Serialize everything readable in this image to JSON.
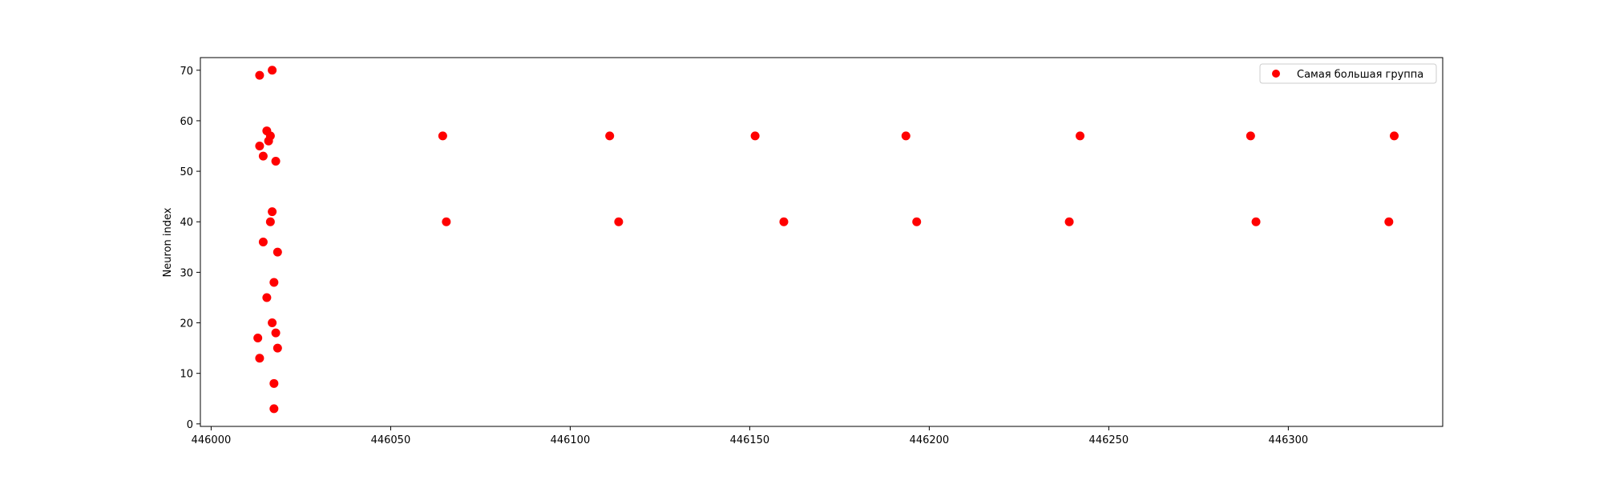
{
  "chart_data": {
    "type": "scatter",
    "title": "",
    "xlabel": "",
    "ylabel": "Neuron index",
    "xlim": [
      445997,
      446343
    ],
    "ylim": [
      -0.5,
      72.5
    ],
    "xticks": [
      446000,
      446050,
      446100,
      446150,
      446200,
      446250,
      446300
    ],
    "xtick_labels": [
      "446000",
      "446050",
      "446100",
      "446150",
      "446200",
      "446250",
      "446300"
    ],
    "yticks": [
      0,
      10,
      20,
      30,
      40,
      50,
      60,
      70
    ],
    "ytick_labels": [
      "0",
      "10",
      "20",
      "30",
      "40",
      "50",
      "60",
      "70"
    ],
    "grid": false,
    "legend": {
      "placement": "top-right",
      "entries": [
        "Самая большая группа"
      ]
    },
    "series": [
      {
        "name": "Самая большая группа",
        "color": "#ff0000",
        "points": [
          {
            "x": 446013.5,
            "y": 69
          },
          {
            "x": 446017.0,
            "y": 70
          },
          {
            "x": 446015.5,
            "y": 58
          },
          {
            "x": 446016.5,
            "y": 57
          },
          {
            "x": 446016.0,
            "y": 56
          },
          {
            "x": 446013.5,
            "y": 55
          },
          {
            "x": 446014.5,
            "y": 53
          },
          {
            "x": 446018.0,
            "y": 52
          },
          {
            "x": 446017.0,
            "y": 42
          },
          {
            "x": 446016.5,
            "y": 40
          },
          {
            "x": 446014.5,
            "y": 36
          },
          {
            "x": 446018.5,
            "y": 34
          },
          {
            "x": 446017.5,
            "y": 28
          },
          {
            "x": 446015.5,
            "y": 25
          },
          {
            "x": 446017.0,
            "y": 20
          },
          {
            "x": 446013.0,
            "y": 17
          },
          {
            "x": 446018.0,
            "y": 18
          },
          {
            "x": 446018.5,
            "y": 15
          },
          {
            "x": 446013.5,
            "y": 13
          },
          {
            "x": 446017.5,
            "y": 8
          },
          {
            "x": 446017.5,
            "y": 3
          },
          {
            "x": 446064.5,
            "y": 57
          },
          {
            "x": 446065.5,
            "y": 40
          },
          {
            "x": 446111.0,
            "y": 57
          },
          {
            "x": 446113.5,
            "y": 40
          },
          {
            "x": 446151.5,
            "y": 57
          },
          {
            "x": 446159.5,
            "y": 40
          },
          {
            "x": 446193.5,
            "y": 57
          },
          {
            "x": 446196.5,
            "y": 40
          },
          {
            "x": 446242.0,
            "y": 57
          },
          {
            "x": 446239.0,
            "y": 40
          },
          {
            "x": 446289.5,
            "y": 57
          },
          {
            "x": 446291.0,
            "y": 40
          },
          {
            "x": 446329.5,
            "y": 57
          },
          {
            "x": 446328.0,
            "y": 40
          }
        ]
      }
    ]
  }
}
